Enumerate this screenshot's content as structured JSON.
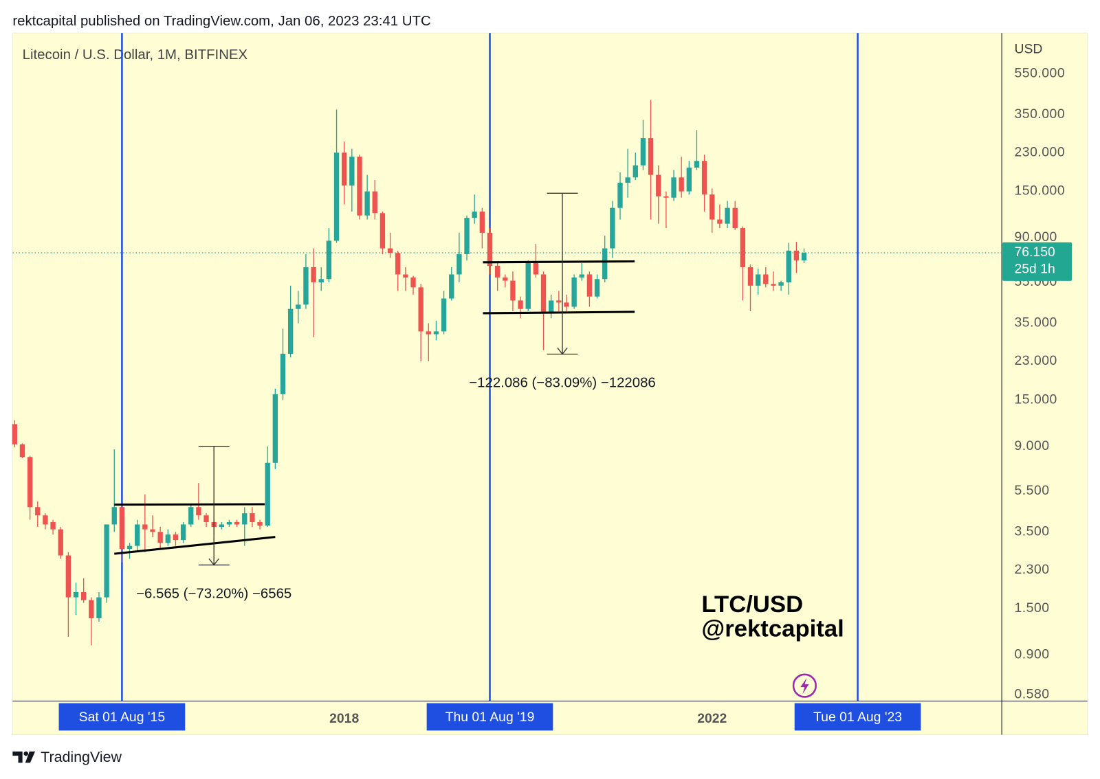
{
  "header": "rektcapital published on TradingView.com, Jan 06, 2023 23:41 UTC",
  "footer": {
    "brand": "TradingView"
  },
  "chart_data": {
    "type": "candlestick",
    "title": "Litecoin / U.S. Dollar, 1M, BITFINEX",
    "currency": "USD",
    "log_scale": true,
    "ylim": [
      0.541,
      861
    ],
    "yticks": [
      {
        "value": 550,
        "label": "550.000"
      },
      {
        "value": 350,
        "label": "350.000"
      },
      {
        "value": 230,
        "label": "230.000"
      },
      {
        "value": 150,
        "label": "150.000"
      },
      {
        "value": 90,
        "label": "90.000"
      },
      {
        "value": 55,
        "label": "55.000"
      },
      {
        "value": 35,
        "label": "35.000"
      },
      {
        "value": 23,
        "label": "23.000"
      },
      {
        "value": 15,
        "label": "15.000"
      },
      {
        "value": 9,
        "label": "9.000"
      },
      {
        "value": 5.5,
        "label": "5.500"
      },
      {
        "value": 3.5,
        "label": "3.500"
      },
      {
        "value": 2.3,
        "label": "2.300"
      },
      {
        "value": 1.5,
        "label": "1.500"
      },
      {
        "value": 0.9,
        "label": "0.900"
      },
      {
        "value": 0.58,
        "label": "0.580"
      }
    ],
    "xlim": [
      "2014-05-23",
      "2025-02-25"
    ],
    "xticks": [
      {
        "value": "2018-01-01",
        "label": "2018"
      },
      {
        "value": "2022-01-01",
        "label": "2022"
      }
    ],
    "up_color": "#26a69a",
    "down_color": "#ef5350",
    "x": [
      "2014-06-01",
      "2014-07-01",
      "2014-08-01",
      "2014-09-01",
      "2014-10-01",
      "2014-11-01",
      "2014-12-01",
      "2015-01-01",
      "2015-02-01",
      "2015-03-01",
      "2015-04-01",
      "2015-05-01",
      "2015-06-01",
      "2015-07-01",
      "2015-08-01",
      "2015-09-01",
      "2015-10-01",
      "2015-11-01",
      "2015-12-01",
      "2016-01-01",
      "2016-02-01",
      "2016-03-01",
      "2016-04-01",
      "2016-05-01",
      "2016-06-01",
      "2016-07-01",
      "2016-08-01",
      "2016-09-01",
      "2016-10-01",
      "2016-11-01",
      "2016-12-01",
      "2017-01-01",
      "2017-02-01",
      "2017-03-01",
      "2017-04-01",
      "2017-05-01",
      "2017-06-01",
      "2017-07-01",
      "2017-08-01",
      "2017-09-01",
      "2017-10-01",
      "2017-11-01",
      "2017-12-01",
      "2018-01-01",
      "2018-02-01",
      "2018-03-01",
      "2018-04-01",
      "2018-05-01",
      "2018-06-01",
      "2018-07-01",
      "2018-08-01",
      "2018-09-01",
      "2018-10-01",
      "2018-11-01",
      "2018-12-01",
      "2019-01-01",
      "2019-02-01",
      "2019-03-01",
      "2019-04-01",
      "2019-05-01",
      "2019-06-01",
      "2019-07-01",
      "2019-08-01",
      "2019-09-01",
      "2019-10-01",
      "2019-11-01",
      "2019-12-01",
      "2020-01-01",
      "2020-02-01",
      "2020-03-01",
      "2020-04-01",
      "2020-05-01",
      "2020-06-01",
      "2020-07-01",
      "2020-08-01",
      "2020-09-01",
      "2020-10-01",
      "2020-11-01",
      "2020-12-01",
      "2021-01-01",
      "2021-02-01",
      "2021-03-01",
      "2021-04-01",
      "2021-05-01",
      "2021-06-01",
      "2021-07-01",
      "2021-08-01",
      "2021-09-01",
      "2021-10-01",
      "2021-11-01",
      "2021-12-01",
      "2022-01-01",
      "2022-02-01",
      "2022-03-01",
      "2022-04-01",
      "2022-05-01",
      "2022-06-01",
      "2022-07-01",
      "2022-08-01",
      "2022-09-01",
      "2022-10-01",
      "2022-11-01",
      "2022-12-01",
      "2023-01-01"
    ],
    "open": [
      11.5,
      9.2,
      8.0,
      4.6,
      4.2,
      3.9,
      3.6,
      2.7,
      1.7,
      1.8,
      1.65,
      1.35,
      1.7,
      3.8,
      4.6,
      2.9,
      3.0,
      3.8,
      3.6,
      3.5,
      3.1,
      3.4,
      3.2,
      3.8,
      4.6,
      4.2,
      3.9,
      3.7,
      3.8,
      3.9,
      3.8,
      4.3,
      3.9,
      3.75,
      7.5,
      16,
      25,
      41,
      43,
      65,
      55,
      57,
      87,
      230,
      160,
      220,
      115,
      150,
      118,
      80,
      76,
      60,
      58,
      52,
      32,
      31,
      32,
      46,
      60,
      75,
      112,
      120,
      95,
      66,
      58,
      56,
      45,
      41,
      68,
      60,
      39,
      45,
      44,
      42,
      58,
      60,
      47,
      57,
      80,
      125,
      165,
      175,
      200,
      270,
      180,
      142,
      140,
      175,
      150,
      195,
      210,
      145,
      110,
      105,
      125,
      100,
      65,
      53,
      60,
      54,
      53,
      55,
      78,
      70
    ],
    "high": [
      12,
      9.3,
      8.1,
      4.9,
      4.3,
      4.0,
      3.7,
      2.8,
      2.0,
      2.1,
      1.7,
      1.8,
      3.8,
      8.7,
      4.7,
      3.1,
      4.0,
      5.3,
      4.2,
      3.7,
      3.6,
      3.5,
      3.9,
      4.7,
      6.0,
      4.3,
      4.0,
      3.9,
      4.0,
      4.0,
      4.6,
      4.6,
      4.0,
      9.0,
      17,
      33,
      53,
      50,
      75,
      80,
      65,
      100,
      370,
      260,
      240,
      225,
      180,
      170,
      120,
      95,
      78,
      65,
      59,
      54,
      35,
      36,
      50,
      65,
      95,
      115,
      145,
      125,
      100,
      68,
      60,
      62,
      47,
      70,
      84,
      62,
      48,
      50,
      48,
      60,
      68,
      62,
      60,
      92,
      135,
      185,
      240,
      230,
      330,
      412,
      200,
      150,
      190,
      220,
      210,
      295,
      225,
      155,
      130,
      135,
      135,
      102,
      67,
      64,
      65,
      62,
      56,
      85,
      86,
      80
    ],
    "low": [
      8.9,
      7.9,
      4.0,
      3.7,
      3.6,
      3.4,
      2.6,
      1.1,
      1.4,
      1.6,
      1.0,
      1.3,
      1.6,
      3.5,
      2.5,
      2.6,
      2.8,
      2.8,
      3.3,
      2.9,
      3.0,
      3.0,
      3.1,
      3.7,
      4.0,
      3.7,
      3.4,
      3.6,
      3.7,
      3.7,
      3.0,
      3.7,
      3.6,
      3.7,
      7.0,
      15,
      24,
      35,
      41,
      30,
      50,
      55,
      85,
      130,
      120,
      110,
      110,
      110,
      75,
      72,
      50,
      50,
      48,
      23,
      23,
      29,
      31,
      45,
      55,
      70,
      105,
      80,
      60,
      50,
      52,
      40,
      37,
      40,
      58,
      26,
      37,
      40,
      40,
      41,
      56,
      42,
      46,
      55,
      72,
      110,
      140,
      170,
      190,
      110,
      105,
      100,
      135,
      140,
      145,
      190,
      120,
      95,
      100,
      100,
      98,
      45,
      40,
      48,
      52,
      50,
      50,
      48,
      61,
      68
    ],
    "close": [
      9.2,
      8.0,
      4.6,
      4.2,
      3.8,
      3.6,
      2.7,
      1.7,
      1.8,
      1.65,
      1.35,
      1.7,
      3.8,
      4.6,
      2.9,
      3.0,
      3.8,
      3.6,
      3.5,
      3.1,
      3.4,
      3.2,
      3.8,
      4.6,
      4.2,
      3.9,
      3.7,
      3.8,
      3.9,
      3.8,
      4.3,
      3.9,
      3.75,
      7.5,
      16,
      25,
      41,
      43,
      65,
      55,
      57,
      87,
      230,
      160,
      220,
      115,
      150,
      118,
      80,
      76,
      60,
      58,
      52,
      32,
      31,
      32,
      46,
      60,
      75,
      112,
      120,
      95,
      66,
      58,
      56,
      45,
      41,
      68,
      60,
      39,
      45,
      44,
      42,
      58,
      60,
      47,
      57,
      80,
      125,
      165,
      175,
      200,
      270,
      180,
      142,
      140,
      175,
      150,
      195,
      210,
      145,
      110,
      105,
      125,
      100,
      65,
      53,
      60,
      54,
      53,
      55,
      78,
      70,
      76.15
    ],
    "last_price": {
      "value": 76.15,
      "label": "76.150",
      "countdown": "25d 1h"
    },
    "markers": [
      {
        "date": "2015-08-01",
        "label": "Sat 01 Aug '15"
      },
      {
        "date": "2019-08-01",
        "label": "Thu 01 Aug '19"
      },
      {
        "date": "2023-08-01",
        "label": "Tue 01 Aug '23"
      }
    ],
    "trend_lines": [
      {
        "start": {
          "date": "2015-07-01",
          "price": 4.73
        },
        "end": {
          "date": "2017-02-20",
          "price": 4.75
        }
      },
      {
        "start": {
          "date": "2015-07-01",
          "price": 2.75
        },
        "end": {
          "date": "2017-04-01",
          "price": 3.31
        }
      },
      {
        "start": {
          "date": "2019-07-04",
          "price": 68.6
        },
        "end": {
          "date": "2021-02-28",
          "price": 69.3
        }
      },
      {
        "start": {
          "date": "2019-07-04",
          "price": 39.1
        },
        "end": {
          "date": "2021-02-28",
          "price": 39.7
        }
      }
    ],
    "measures": [
      {
        "date": "2016-08-01",
        "high": 9.0,
        "low": 2.43,
        "label": "−6.565 (−73.20%) −6565"
      },
      {
        "date": "2020-05-15",
        "high": 147,
        "low": 24.9,
        "label": "−122.086 (−83.09%) −122086"
      }
    ],
    "watermark": [
      "LTC/USD",
      "@rektcapital"
    ]
  }
}
